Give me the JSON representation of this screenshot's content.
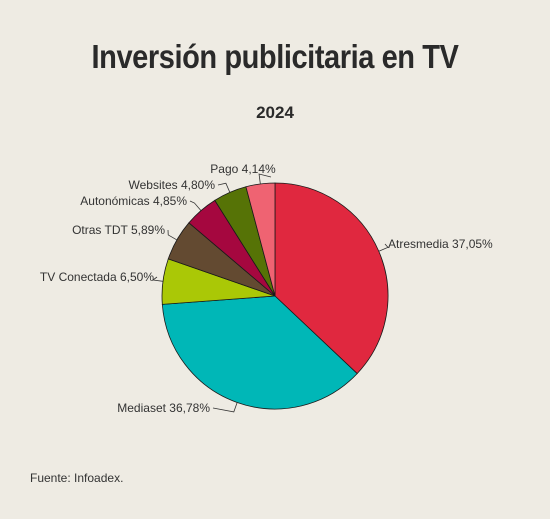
{
  "title": "Inversión publicitaria en TV",
  "subtitle": "2024",
  "source": "Fuente: Infoadex.",
  "chart_data": {
    "type": "pie",
    "title": "Inversión publicitaria en TV",
    "subtitle": "2024",
    "start": "12 o'clock, clockwise",
    "slices": [
      {
        "label": "Atresmedia 37,05%",
        "name": "Atresmedia",
        "value": 37.05,
        "color": "#e0283f"
      },
      {
        "label": "Mediaset 36,78%",
        "name": "Mediaset",
        "value": 36.78,
        "color": "#00b7b7"
      },
      {
        "label": "TV Conectada 6,50%",
        "name": "TV Conectada",
        "value": 6.5,
        "color": "#aac806"
      },
      {
        "label": "Otras TDT 5,89%",
        "name": "Otras TDT",
        "value": 5.89,
        "color": "#634a31"
      },
      {
        "label": "Autonómicas 4,85%",
        "name": "Autonómicas",
        "value": 4.85,
        "color": "#a5073f"
      },
      {
        "label": "Websites 4,80%",
        "name": "Websites",
        "value": 4.8,
        "color": "#567306"
      },
      {
        "label": "Pago 4,14%",
        "name": "Pago",
        "value": 4.14,
        "color": "#ef6372"
      }
    ]
  }
}
